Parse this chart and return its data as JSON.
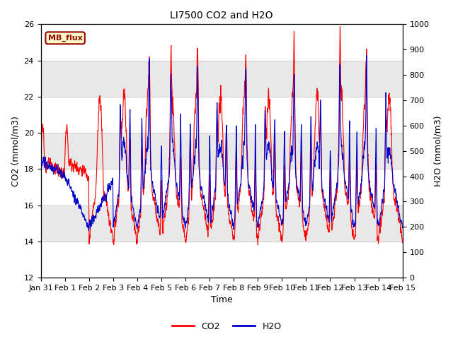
{
  "title": "LI7500 CO2 and H2O",
  "xlabel": "Time",
  "ylabel_left": "CO2 (mmol/m3)",
  "ylabel_right": "H2O (mmol/m3)",
  "ylim_left": [
    12,
    26
  ],
  "ylim_right": [
    0,
    1000
  ],
  "yticks_left": [
    12,
    14,
    16,
    18,
    20,
    22,
    24,
    26
  ],
  "yticks_right": [
    0,
    100,
    200,
    300,
    400,
    500,
    600,
    700,
    800,
    900,
    1000
  ],
  "xtick_labels": [
    "Jan 31",
    "Feb 1",
    "Feb 2",
    "Feb 3",
    "Feb 4",
    "Feb 5",
    "Feb 6",
    "Feb 7",
    "Feb 8",
    "Feb 9",
    "Feb 10",
    "Feb 11",
    "Feb 12",
    "Feb 13",
    "Feb 14",
    "Feb 15"
  ],
  "color_co2": "#ff0000",
  "color_h2o": "#0000cc",
  "legend_box_facecolor": "#ffffcc",
  "legend_box_text": "MB_flux",
  "legend_box_edgecolor": "#990000",
  "legend_box_textcolor": "#990000",
  "bg_color": "#ffffff",
  "band_colors": [
    "#ffffff",
    "#e8e8e8"
  ],
  "grid_color": "#c8c8c8",
  "title_fontsize": 10,
  "label_fontsize": 9,
  "tick_fontsize": 8,
  "linewidth": 0.8
}
